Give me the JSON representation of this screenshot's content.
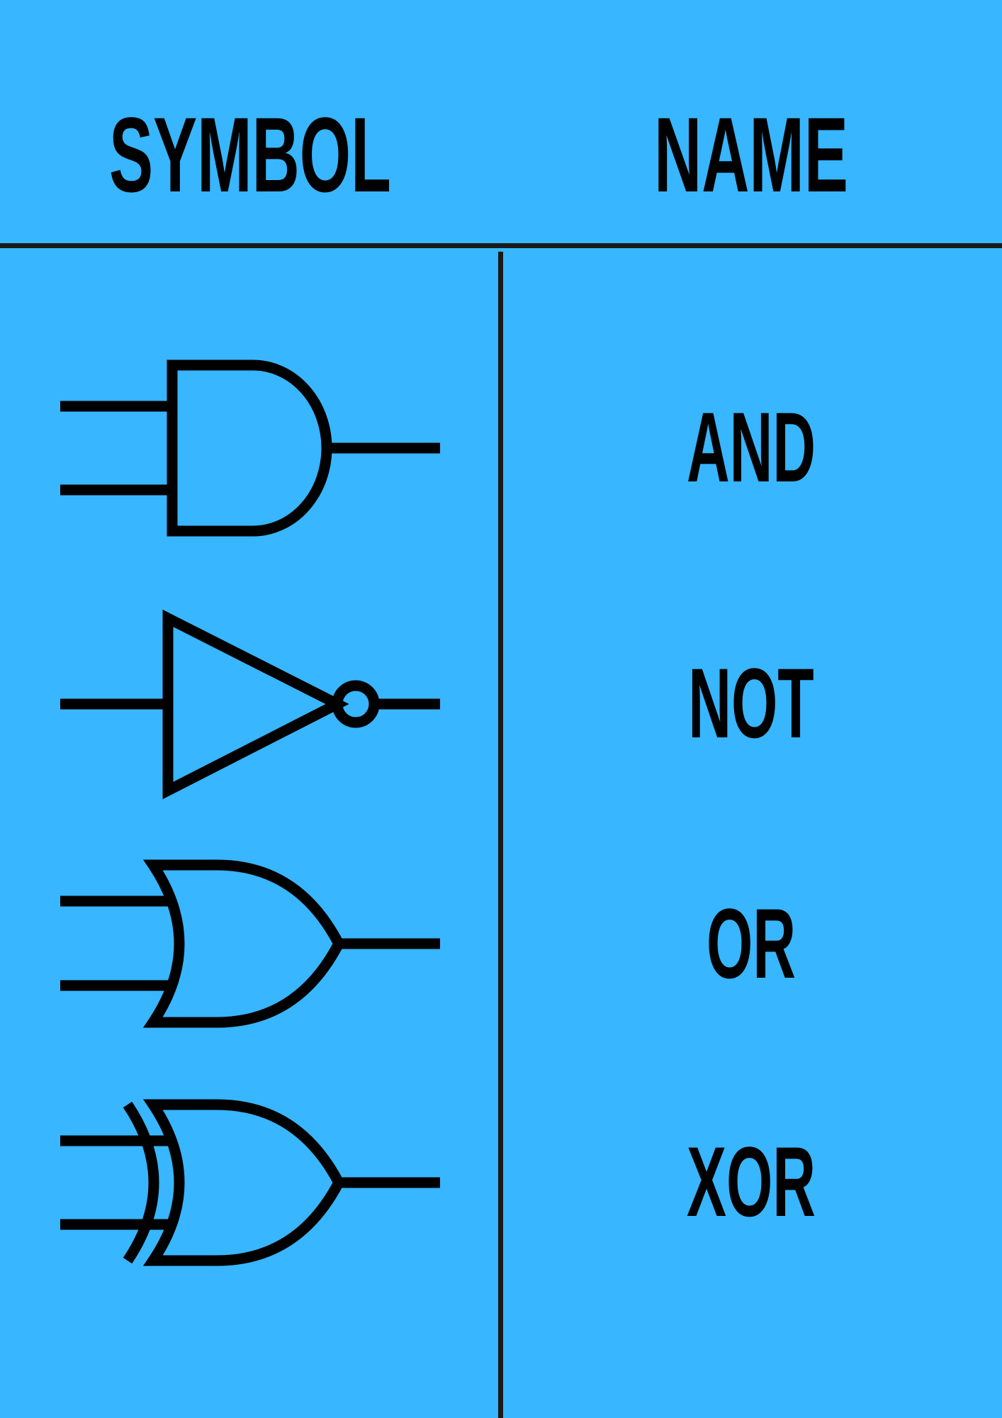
{
  "colors": {
    "background": "#38b6ff",
    "divider": "#1a1a1a",
    "ink": "#000000"
  },
  "headers": {
    "symbol": "SYMBOL",
    "name": "NAME"
  },
  "rows": [
    {
      "symbol_icon": "and-gate-icon",
      "name": "AND"
    },
    {
      "symbol_icon": "not-gate-icon",
      "name": "NOT"
    },
    {
      "symbol_icon": "or-gate-icon",
      "name": "OR"
    },
    {
      "symbol_icon": "xor-gate-icon",
      "name": "XOR"
    }
  ]
}
